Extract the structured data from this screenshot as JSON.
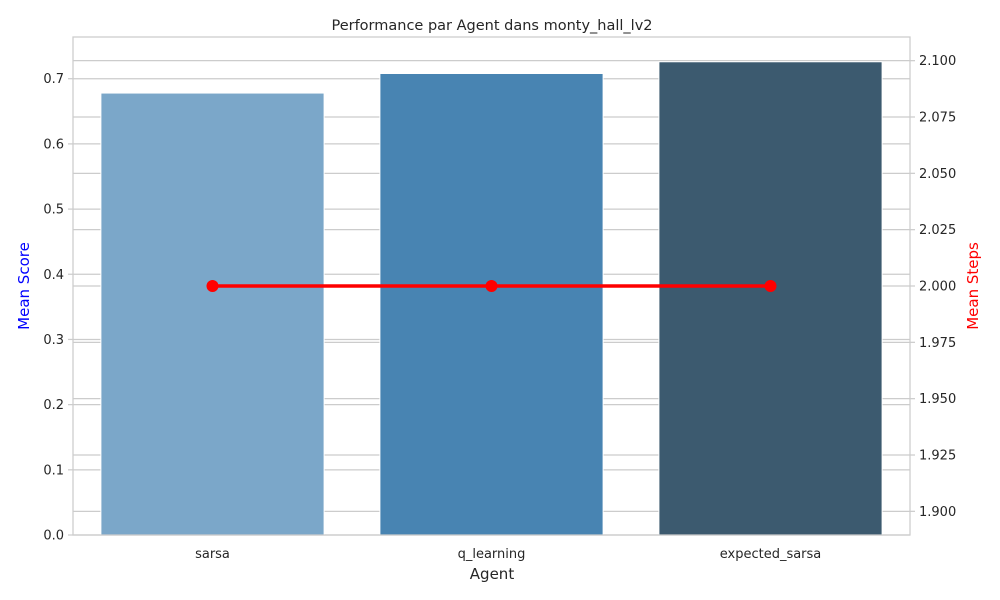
{
  "chart_data": {
    "type": "bar",
    "title": "Performance par Agent dans monty_hall_lv2",
    "xlabel": "Agent",
    "ylabel": "Mean Score",
    "ylabel_color": "#0000ff",
    "y2label": "Mean Steps",
    "y2label_color": "#ff0000",
    "categories": [
      "sarsa",
      "q_learning",
      "expected_sarsa"
    ],
    "bar_colors": [
      "#7ba7c9",
      "#4884b2",
      "#3c5a6f"
    ],
    "series": [
      {
        "values": [
          0.678,
          0.708,
          0.726
        ],
        "axis": "left",
        "type": "bar"
      },
      {
        "values": [
          2.0,
          2.0,
          2.0
        ],
        "axis": "right",
        "type": "line",
        "color": "#ff0000"
      }
    ],
    "ylim": [
      0,
      0.764
    ],
    "yticks": [
      "0.0",
      "0.1",
      "0.2",
      "0.3",
      "0.4",
      "0.5",
      "0.6",
      "0.7"
    ],
    "y2lim": [
      1.8895,
      2.1105
    ],
    "y2ticks": [
      "1.900",
      "1.925",
      "1.950",
      "1.975",
      "2.000",
      "2.025",
      "2.050",
      "2.075",
      "2.100"
    ],
    "grid": true
  }
}
